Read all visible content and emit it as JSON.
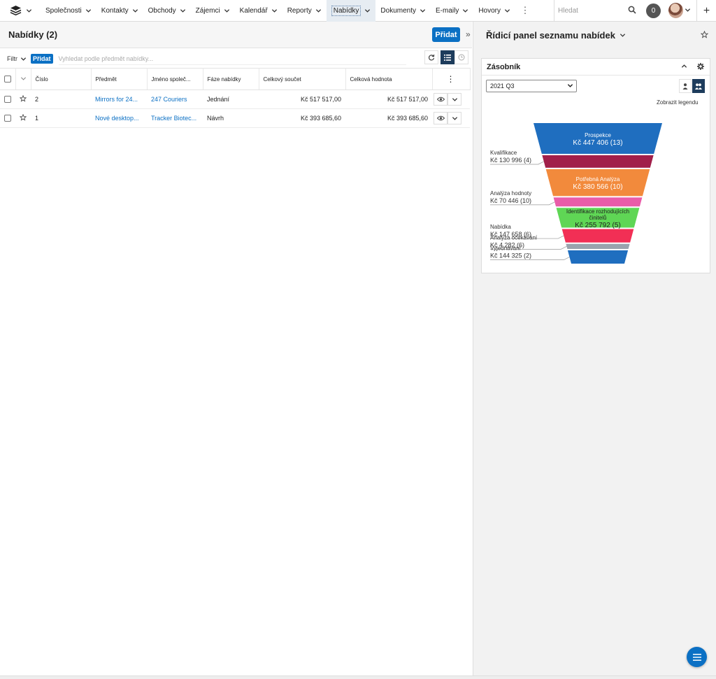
{
  "nav": {
    "items": [
      {
        "label": "Společnosti"
      },
      {
        "label": "Kontakty"
      },
      {
        "label": "Obchody"
      },
      {
        "label": "Zájemci"
      },
      {
        "label": "Kalendář"
      },
      {
        "label": "Reporty"
      },
      {
        "label": "Nabídky",
        "active": true
      },
      {
        "label": "Dokumenty"
      },
      {
        "label": "E-maily"
      },
      {
        "label": "Hovory"
      }
    ],
    "search_placeholder": "Hledat",
    "notification_count": "0"
  },
  "list": {
    "title": "Nabídky (2)",
    "add_label": "Přidat",
    "filter_label": "Filtr",
    "filter_add_label": "Přidat",
    "search_placeholder": "Vyhledat podle předmět nabídky...",
    "columns": [
      "Číslo",
      "Předmět",
      "Jméno společ...",
      "Fáze nabídky",
      "Celkový součet",
      "Celková hodnota"
    ],
    "rows": [
      {
        "number": "2",
        "subject": "Mirrors for 24...",
        "company": "247 Couriers",
        "stage": "Jednání",
        "total": "Kč 517 517,00",
        "value": "Kč 517 517,00"
      },
      {
        "number": "1",
        "subject": "Nové desktop...",
        "company": "Tracker Biotec...",
        "stage": "Návrh",
        "total": "Kč 393 685,60",
        "value": "Kč 393 685,60"
      }
    ]
  },
  "dashboard": {
    "title": "Řídicí panel seznamu nabídek",
    "dashlet_title": "Zásobník",
    "period": "2021 Q3",
    "legend_link": "Zobrazit legendu"
  },
  "chart_data": {
    "type": "funnel",
    "series": [
      {
        "name": "Prospekce",
        "value_label": "Kč 447 406 (13)",
        "value": 447406,
        "count": 13,
        "color": "#1f6ebf"
      },
      {
        "name": "Kvalifikace",
        "value_label": "Kč 130 996 (4)",
        "value": 130996,
        "count": 4,
        "color": "#a11f4a"
      },
      {
        "name": "Potřebná Analýza",
        "value_label": "Kč 380 566 (10)",
        "value": 380566,
        "count": 10,
        "color": "#f28a3c"
      },
      {
        "name": "Analýza hodnoty",
        "value_label": "Kč 70 446 (10)",
        "value": 70446,
        "count": 10,
        "color": "#e95ca9"
      },
      {
        "name": "Identifikace rozhodujících činitelů",
        "value_label": "Kč 255 792 (5)",
        "value": 255792,
        "count": 5,
        "color": "#5fd655"
      },
      {
        "name": "Nabídka",
        "value_label": "Kč 147 658 (6)",
        "value": 147658,
        "count": 6,
        "color": "#f22f55"
      },
      {
        "name": "Analýza očekávání",
        "value_label": "Kč 4 282 (6)",
        "value": 4282,
        "count": 6,
        "color": "#9aa3ad"
      },
      {
        "name": "Vyjednávání",
        "value_label": "Kč 144 325 (2)",
        "value": 144325,
        "count": 2,
        "color": "#1f6ebf"
      }
    ]
  }
}
